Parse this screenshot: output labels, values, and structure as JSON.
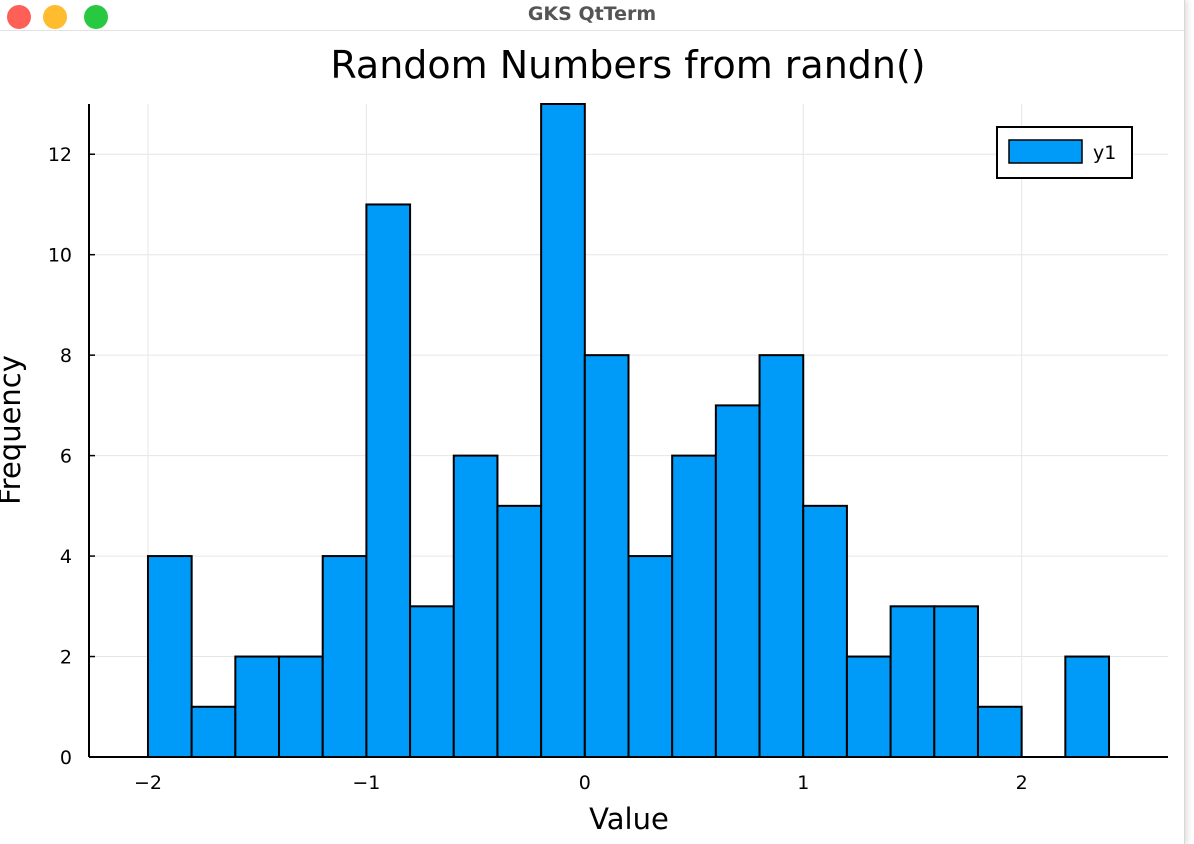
{
  "window": {
    "title": "GKS QtTerm"
  },
  "chart_data": {
    "type": "bar",
    "title": "Random Numbers from randn()",
    "xlabel": "Value",
    "ylabel": "Frequency",
    "bin_width": 0.2,
    "bin_edges_start": -2.0,
    "values": [
      4,
      1,
      2,
      2,
      4,
      11,
      3,
      6,
      5,
      13,
      8,
      4,
      6,
      7,
      8,
      5,
      2,
      3,
      3,
      1,
      0,
      2
    ],
    "xlim": [
      -2.27,
      2.67
    ],
    "ylim": [
      0,
      13
    ],
    "xticks": [
      {
        "v": -2,
        "label": "−2"
      },
      {
        "v": -1,
        "label": "−1"
      },
      {
        "v": 0,
        "label": "0"
      },
      {
        "v": 1,
        "label": "1"
      },
      {
        "v": 2,
        "label": "2"
      }
    ],
    "yticks": [
      {
        "v": 0,
        "label": "0"
      },
      {
        "v": 2,
        "label": "2"
      },
      {
        "v": 4,
        "label": "4"
      },
      {
        "v": 6,
        "label": "6"
      },
      {
        "v": 8,
        "label": "8"
      },
      {
        "v": 10,
        "label": "10"
      },
      {
        "v": 12,
        "label": "12"
      }
    ],
    "series": [
      {
        "name": "y1",
        "color": "#009af9"
      }
    ],
    "legend": "top-right",
    "grid": true
  }
}
